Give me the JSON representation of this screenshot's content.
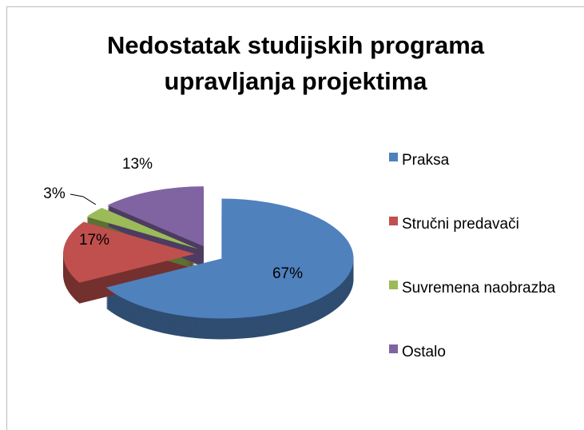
{
  "chart_data": {
    "type": "pie",
    "title": "Nedostatak studijskih programa upravljanja projektima",
    "categories": [
      "Praksa",
      "Stručni predavači",
      "Suvremena naobrazba",
      "Ostalo"
    ],
    "values": [
      67,
      17,
      3,
      13
    ],
    "value_labels": [
      "67%",
      "17%",
      "3%",
      "13%"
    ],
    "colors": [
      "#4f81bd",
      "#c0504d",
      "#9bbb59",
      "#8064a2"
    ],
    "legend": "right"
  }
}
